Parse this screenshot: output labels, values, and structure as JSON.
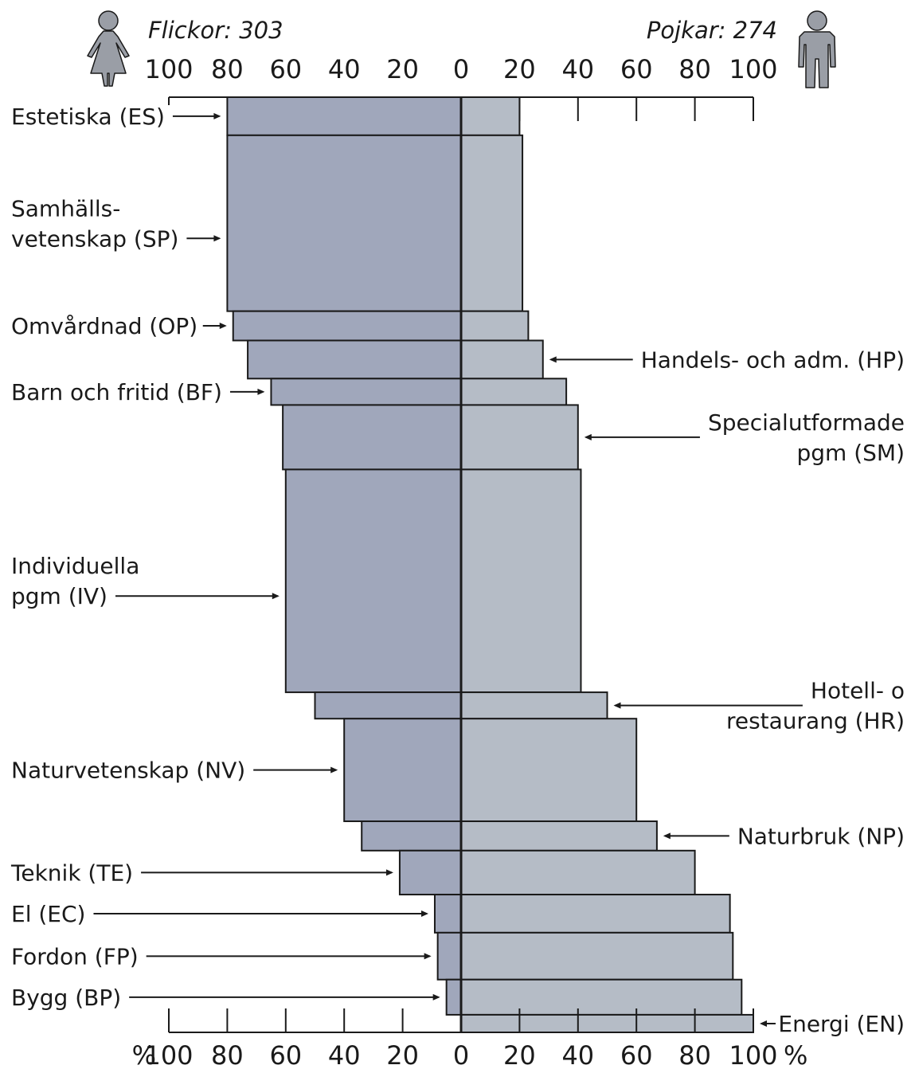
{
  "chart_data": {
    "type": "bar",
    "orientation": "horizontal-diverging",
    "grid": false,
    "unit_symbol": "%",
    "colors": {
      "girls": "#a0a7bb",
      "boys": "#b5bcc6",
      "outline": "#1a1a1a",
      "icon": "#9a9ea6"
    },
    "left_group": {
      "label": "Flickor: 303",
      "icon": "female-figure-icon"
    },
    "right_group": {
      "label": "Pojkar: 274",
      "icon": "male-figure-icon"
    },
    "xlim": [
      -100,
      100
    ],
    "ticks": [
      100,
      80,
      60,
      40,
      20,
      0,
      20,
      40,
      60,
      80,
      100
    ],
    "bar_note": "Bar thickness in the original is proportional to the program's share of all students; thickness is drawn with relative weights below.",
    "bars": [
      {
        "girls": 80,
        "boys": 20,
        "weight": 13
      },
      {
        "girls": 80,
        "boys": 21,
        "weight": 60
      },
      {
        "girls": 78,
        "boys": 23,
        "weight": 10
      },
      {
        "girls": 73,
        "boys": 28,
        "weight": 13
      },
      {
        "girls": 65,
        "boys": 36,
        "weight": 9
      },
      {
        "girls": 61,
        "boys": 40,
        "weight": 22
      },
      {
        "girls": 60,
        "boys": 41,
        "weight": 76
      },
      {
        "girls": 50,
        "boys": 50,
        "weight": 9
      },
      {
        "girls": 40,
        "boys": 60,
        "weight": 35
      },
      {
        "girls": 34,
        "boys": 67,
        "weight": 10
      },
      {
        "girls": 21,
        "boys": 80,
        "weight": 15
      },
      {
        "girls": 9,
        "boys": 92,
        "weight": 13
      },
      {
        "girls": 8,
        "boys": 93,
        "weight": 16
      },
      {
        "girls": 5,
        "boys": 96,
        "weight": 12
      },
      {
        "girls": 0,
        "boys": 100,
        "weight": 6
      }
    ],
    "annotations": [
      {
        "lines": [
          "Estetiska (ES)"
        ],
        "bar": 0,
        "side": "left"
      },
      {
        "lines": [
          "Samhälls-",
          "vetenskap (SP)"
        ],
        "bar": 1,
        "side": "left"
      },
      {
        "lines": [
          "Omvårdnad (OP)"
        ],
        "bar": 2,
        "side": "left"
      },
      {
        "lines": [
          "Handels- och adm. (HP)"
        ],
        "bar": 3,
        "side": "right"
      },
      {
        "lines": [
          "Barn och fritid (BF)"
        ],
        "bar": 4,
        "side": "left"
      },
      {
        "lines": [
          "Specialutformade",
          "pgm (SM)"
        ],
        "bar": 5,
        "side": "right"
      },
      {
        "lines": [
          "Individuella",
          "pgm (IV)"
        ],
        "bar": 6,
        "side": "left"
      },
      {
        "lines": [
          "Hotell- o",
          "restaurang (HR)"
        ],
        "bar": 7,
        "side": "right"
      },
      {
        "lines": [
          "Naturvetenskap (NV)"
        ],
        "bar": 8,
        "side": "left"
      },
      {
        "lines": [
          "Naturbruk (NP)"
        ],
        "bar": 9,
        "side": "right"
      },
      {
        "lines": [
          "Teknik (TE)"
        ],
        "bar": 10,
        "side": "left"
      },
      {
        "lines": [
          "El (EC)"
        ],
        "bar": 11,
        "side": "left"
      },
      {
        "lines": [
          "Fordon (FP)"
        ],
        "bar": 12,
        "side": "left"
      },
      {
        "lines": [
          "Bygg (BP)"
        ],
        "bar": 13,
        "side": "left"
      },
      {
        "lines": [
          "Energi (EN)"
        ],
        "bar": 14,
        "side": "right"
      }
    ]
  }
}
